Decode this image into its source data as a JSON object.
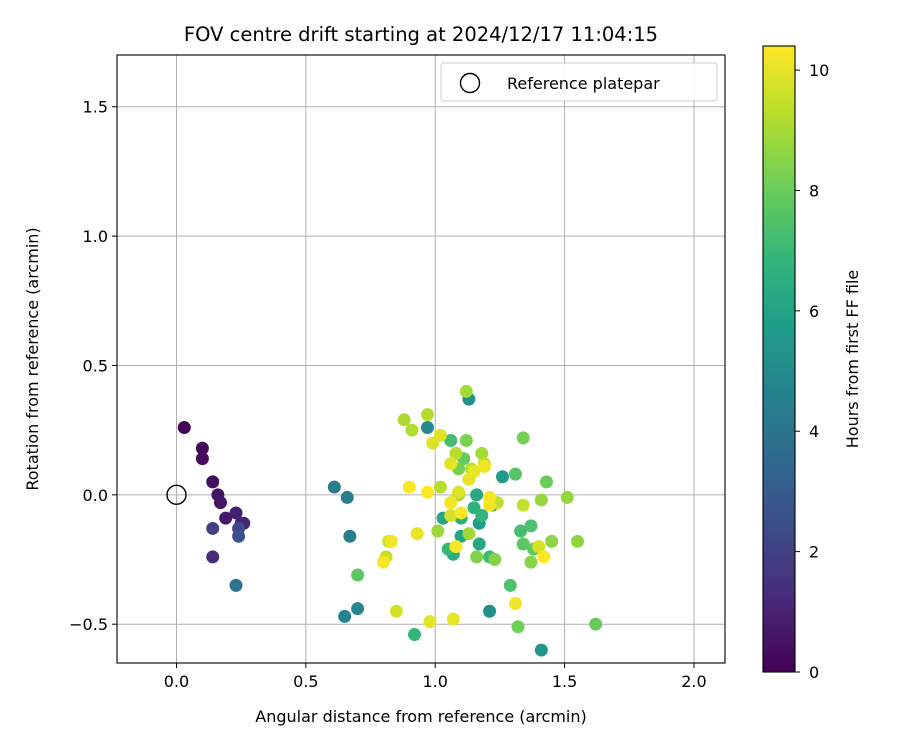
{
  "chart_data": {
    "type": "scatter",
    "title": "FOV centre drift starting at 2024/12/17 11:04:15",
    "xlabel": "Angular distance from reference (arcmin)",
    "ylabel": "Rotation from reference (arcmin)",
    "xlim": [
      -0.23,
      2.12
    ],
    "ylim": [
      -0.65,
      1.7
    ],
    "xticks": [
      0.0,
      0.5,
      1.0,
      1.5,
      2.0
    ],
    "xtick_labels": [
      "0.0",
      "0.5",
      "1.0",
      "1.5",
      "2.0"
    ],
    "yticks": [
      -0.5,
      0.0,
      0.5,
      1.0,
      1.5
    ],
    "ytick_labels": [
      "−0.5",
      "0.0",
      "0.5",
      "1.0",
      "1.5"
    ],
    "grid": true,
    "legend": {
      "position": "top-right",
      "entries": [
        "Reference platepar"
      ]
    },
    "colormap": "viridis",
    "colorbar": {
      "label": "Hours from first FF file",
      "range": [
        0,
        10.4
      ],
      "ticks": [
        0,
        2,
        4,
        6,
        8,
        10
      ],
      "tick_labels": [
        "0",
        "2",
        "4",
        "6",
        "8",
        "10"
      ]
    },
    "reference_point": {
      "name": "Reference platepar",
      "x": 0.0,
      "y": 0.0
    },
    "points": [
      {
        "x": 0.03,
        "y": 0.26,
        "h": 0.1
      },
      {
        "x": 0.1,
        "y": 0.18,
        "h": 0.2
      },
      {
        "x": 0.1,
        "y": 0.14,
        "h": 0.3
      },
      {
        "x": 0.14,
        "y": 0.05,
        "h": 0.4
      },
      {
        "x": 0.16,
        "y": 0.0,
        "h": 0.5
      },
      {
        "x": 0.17,
        "y": -0.03,
        "h": 0.6
      },
      {
        "x": 0.19,
        "y": -0.09,
        "h": 0.7
      },
      {
        "x": 0.23,
        "y": -0.07,
        "h": 0.9
      },
      {
        "x": 0.25,
        "y": -0.11,
        "h": 1.0
      },
      {
        "x": 0.26,
        "y": -0.11,
        "h": 1.1
      },
      {
        "x": 0.14,
        "y": -0.24,
        "h": 1.3
      },
      {
        "x": 0.14,
        "y": -0.13,
        "h": 2.0
      },
      {
        "x": 0.24,
        "y": -0.13,
        "h": 2.3
      },
      {
        "x": 0.24,
        "y": -0.16,
        "h": 2.6
      },
      {
        "x": 0.23,
        "y": -0.35,
        "h": 3.9
      },
      {
        "x": 0.61,
        "y": 0.03,
        "h": 4.3
      },
      {
        "x": 0.66,
        "y": -0.01,
        "h": 4.4
      },
      {
        "x": 0.67,
        "y": -0.16,
        "h": 4.5
      },
      {
        "x": 0.65,
        "y": -0.47,
        "h": 4.6
      },
      {
        "x": 0.7,
        "y": -0.44,
        "h": 4.8
      },
      {
        "x": 0.97,
        "y": 0.26,
        "h": 4.9
      },
      {
        "x": 1.13,
        "y": 0.37,
        "h": 5.3
      },
      {
        "x": 1.21,
        "y": -0.45,
        "h": 5.2
      },
      {
        "x": 1.41,
        "y": -0.6,
        "h": 5.4
      },
      {
        "x": 1.26,
        "y": 0.07,
        "h": 5.6
      },
      {
        "x": 1.17,
        "y": -0.11,
        "h": 5.8
      },
      {
        "x": 1.17,
        "y": -0.19,
        "h": 6.2
      },
      {
        "x": 1.1,
        "y": -0.16,
        "h": 6.0
      },
      {
        "x": 1.07,
        "y": -0.23,
        "h": 6.4
      },
      {
        "x": 1.1,
        "y": -0.09,
        "h": 6.5
      },
      {
        "x": 1.03,
        "y": -0.09,
        "h": 6.1
      },
      {
        "x": 1.16,
        "y": 0.0,
        "h": 6.3
      },
      {
        "x": 1.22,
        "y": -0.04,
        "h": 6.6
      },
      {
        "x": 1.15,
        "y": -0.05,
        "h": 6.7
      },
      {
        "x": 1.18,
        "y": -0.08,
        "h": 6.8
      },
      {
        "x": 0.92,
        "y": -0.54,
        "h": 6.9
      },
      {
        "x": 1.05,
        "y": -0.21,
        "h": 7.0
      },
      {
        "x": 1.21,
        "y": -0.24,
        "h": 7.1
      },
      {
        "x": 1.06,
        "y": 0.21,
        "h": 7.2
      },
      {
        "x": 1.33,
        "y": -0.14,
        "h": 7.3
      },
      {
        "x": 1.37,
        "y": -0.12,
        "h": 7.4
      },
      {
        "x": 1.29,
        "y": -0.35,
        "h": 7.5
      },
      {
        "x": 1.31,
        "y": 0.08,
        "h": 7.6
      },
      {
        "x": 1.34,
        "y": -0.19,
        "h": 7.7
      },
      {
        "x": 1.38,
        "y": -0.21,
        "h": 7.8
      },
      {
        "x": 1.11,
        "y": 0.14,
        "h": 7.9
      },
      {
        "x": 1.43,
        "y": 0.05,
        "h": 8.0
      },
      {
        "x": 1.62,
        "y": -0.5,
        "h": 7.95
      },
      {
        "x": 1.32,
        "y": -0.51,
        "h": 8.1
      },
      {
        "x": 1.34,
        "y": 0.22,
        "h": 8.2
      },
      {
        "x": 1.09,
        "y": 0.1,
        "h": 8.25
      },
      {
        "x": 1.12,
        "y": 0.21,
        "h": 8.3
      },
      {
        "x": 1.16,
        "y": -0.24,
        "h": 8.4
      },
      {
        "x": 1.23,
        "y": -0.25,
        "h": 8.45
      },
      {
        "x": 1.37,
        "y": -0.26,
        "h": 8.5
      },
      {
        "x": 1.45,
        "y": -0.18,
        "h": 8.6
      },
      {
        "x": 1.55,
        "y": -0.18,
        "h": 8.65
      },
      {
        "x": 1.51,
        "y": -0.01,
        "h": 8.7
      },
      {
        "x": 1.41,
        "y": -0.02,
        "h": 8.75
      },
      {
        "x": 0.7,
        "y": -0.31,
        "h": 7.7
      },
      {
        "x": 1.01,
        "y": -0.14,
        "h": 8.8
      },
      {
        "x": 1.09,
        "y": 0.0,
        "h": 8.85
      },
      {
        "x": 1.13,
        "y": -0.15,
        "h": 8.9
      },
      {
        "x": 1.18,
        "y": 0.16,
        "h": 8.95
      },
      {
        "x": 1.12,
        "y": 0.4,
        "h": 9.0
      },
      {
        "x": 0.88,
        "y": 0.29,
        "h": 9.1
      },
      {
        "x": 0.91,
        "y": 0.25,
        "h": 9.15
      },
      {
        "x": 0.97,
        "y": 0.31,
        "h": 9.2
      },
      {
        "x": 1.02,
        "y": 0.03,
        "h": 9.25
      },
      {
        "x": 1.08,
        "y": 0.16,
        "h": 9.3
      },
      {
        "x": 1.14,
        "y": 0.1,
        "h": 9.35
      },
      {
        "x": 1.19,
        "y": 0.12,
        "h": 9.4
      },
      {
        "x": 1.24,
        "y": -0.03,
        "h": 9.45
      },
      {
        "x": 1.34,
        "y": -0.04,
        "h": 9.5
      },
      {
        "x": 0.81,
        "y": -0.24,
        "h": 9.55
      },
      {
        "x": 0.82,
        "y": -0.18,
        "h": 9.6
      },
      {
        "x": 0.85,
        "y": -0.45,
        "h": 9.7
      },
      {
        "x": 1.4,
        "y": -0.2,
        "h": 9.75
      },
      {
        "x": 1.06,
        "y": -0.08,
        "h": 9.8
      },
      {
        "x": 1.09,
        "y": 0.01,
        "h": 9.85
      },
      {
        "x": 0.99,
        "y": 0.2,
        "h": 9.9
      },
      {
        "x": 1.02,
        "y": 0.23,
        "h": 9.95
      },
      {
        "x": 1.06,
        "y": 0.12,
        "h": 10.0
      },
      {
        "x": 1.13,
        "y": 0.06,
        "h": 10.05
      },
      {
        "x": 1.15,
        "y": 0.09,
        "h": 10.1
      },
      {
        "x": 1.19,
        "y": 0.11,
        "h": 10.15
      },
      {
        "x": 1.21,
        "y": -0.04,
        "h": 10.2
      },
      {
        "x": 1.06,
        "y": -0.03,
        "h": 10.25
      },
      {
        "x": 1.1,
        "y": -0.07,
        "h": 10.3
      },
      {
        "x": 1.08,
        "y": -0.2,
        "h": 10.35
      },
      {
        "x": 0.93,
        "y": -0.15,
        "h": 10.1
      },
      {
        "x": 0.83,
        "y": -0.18,
        "h": 10.2
      },
      {
        "x": 0.8,
        "y": -0.26,
        "h": 10.3
      },
      {
        "x": 0.9,
        "y": 0.03,
        "h": 10.35
      },
      {
        "x": 0.97,
        "y": 0.01,
        "h": 10.4
      },
      {
        "x": 0.98,
        "y": -0.49,
        "h": 10.0
      },
      {
        "x": 1.07,
        "y": -0.48,
        "h": 10.1
      },
      {
        "x": 1.31,
        "y": -0.42,
        "h": 10.2
      },
      {
        "x": 1.42,
        "y": -0.24,
        "h": 10.4
      },
      {
        "x": 1.21,
        "y": -0.01,
        "h": 10.3
      }
    ]
  }
}
